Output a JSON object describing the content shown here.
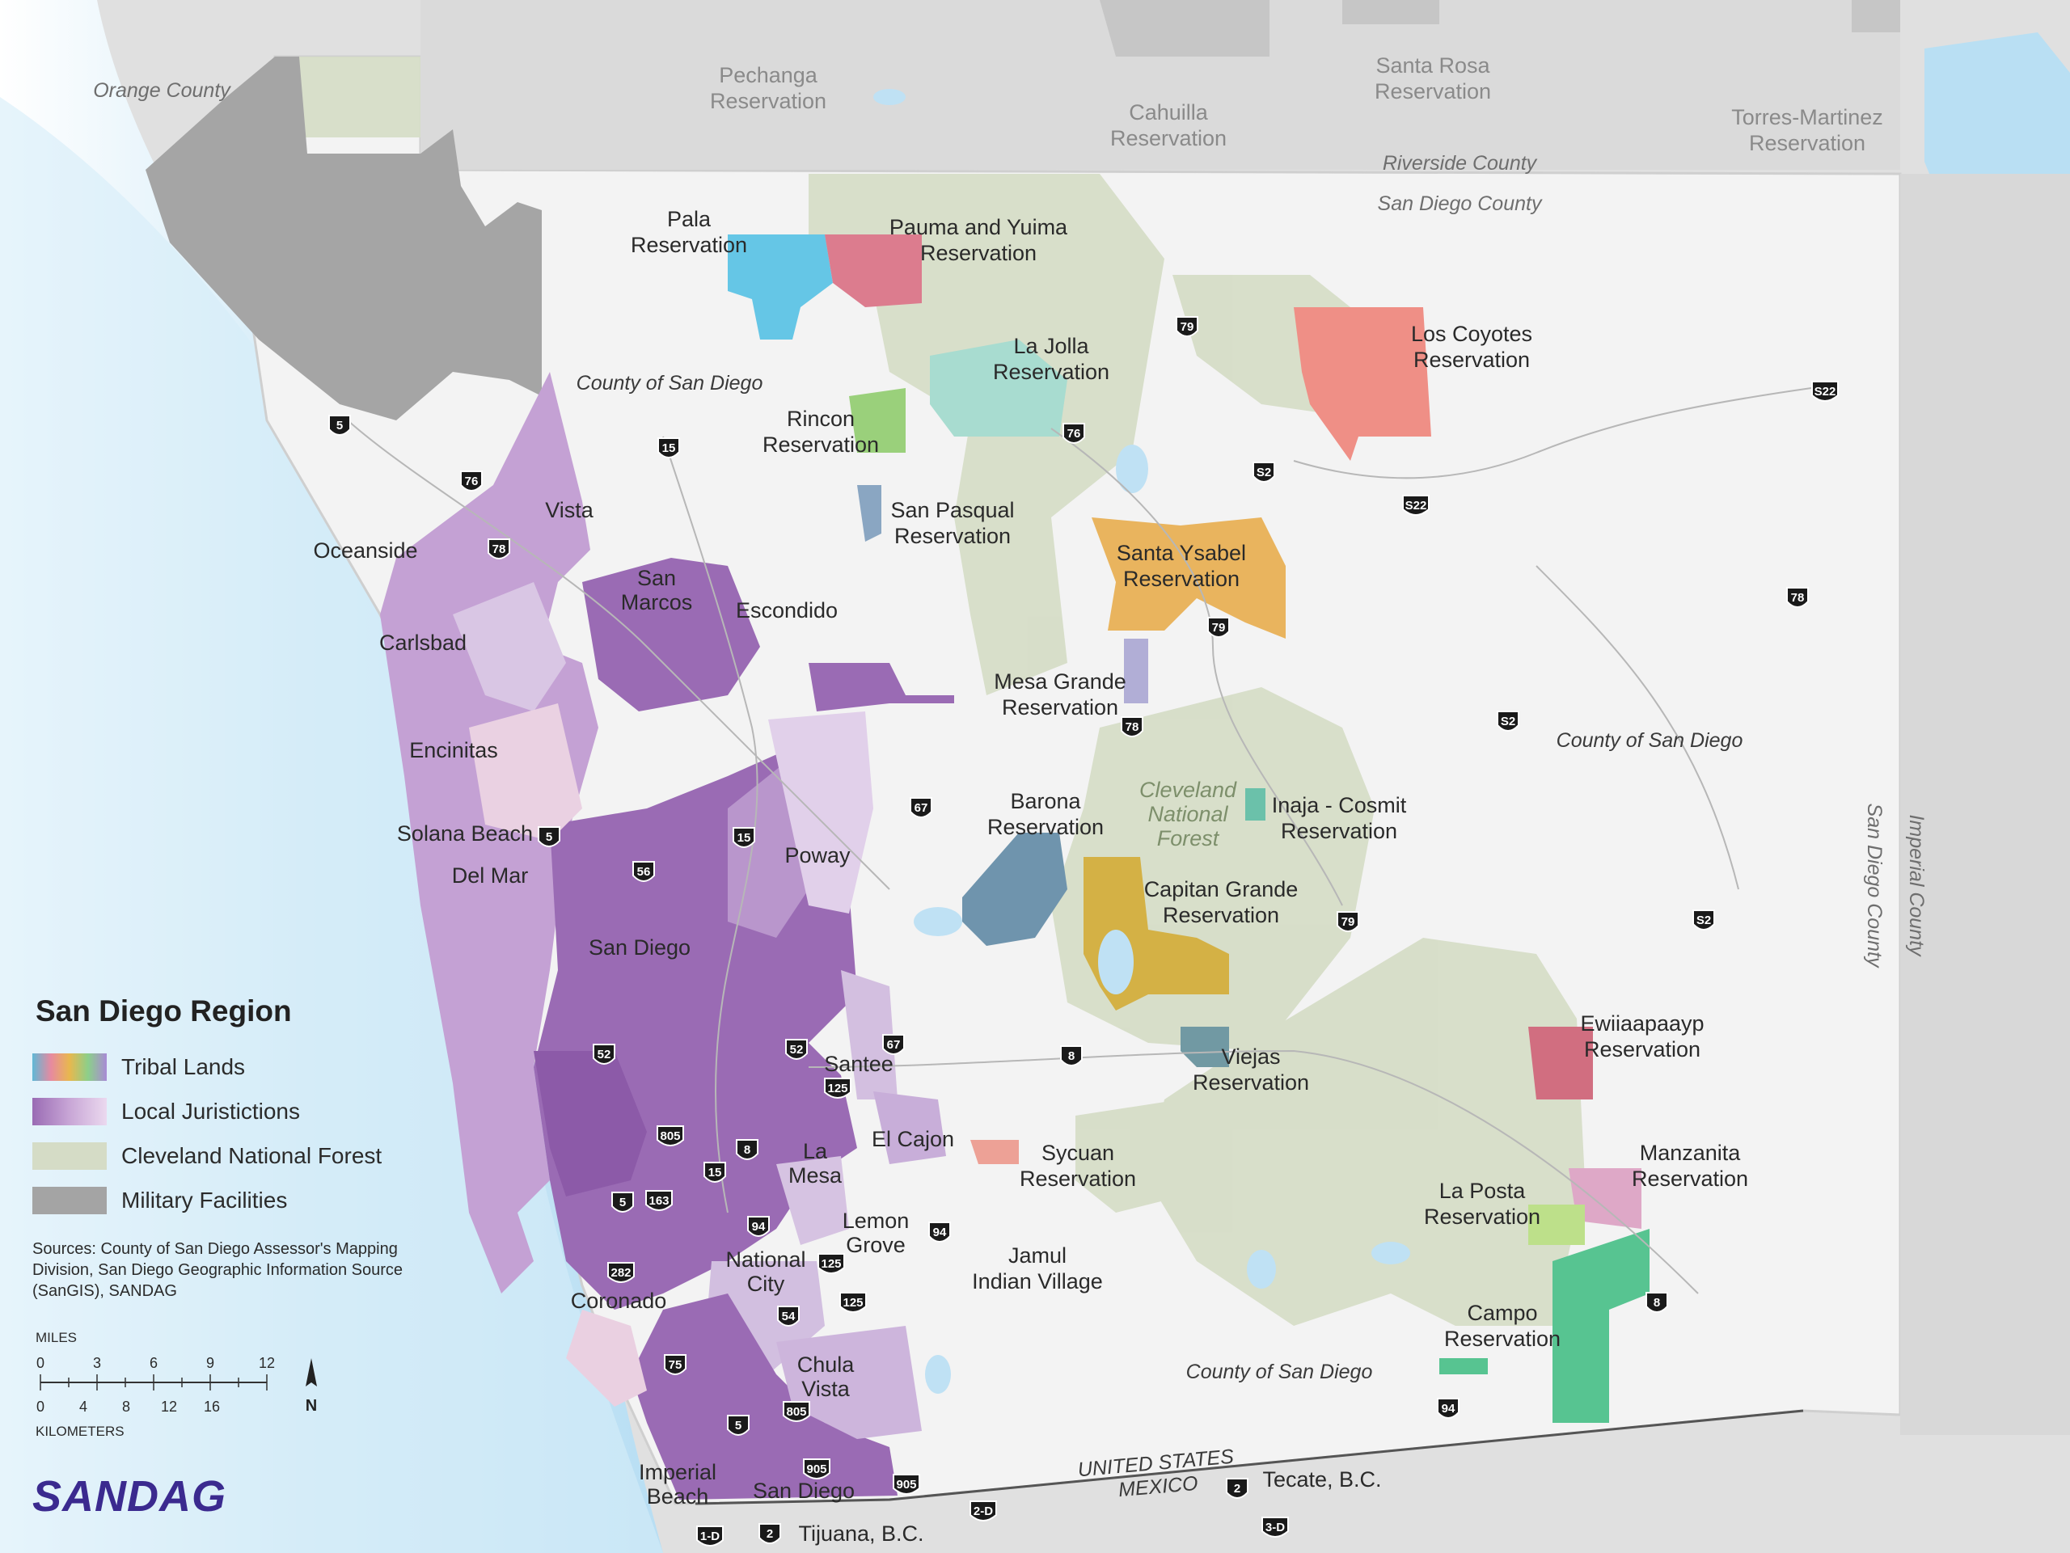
{
  "map": {
    "counties": {
      "orange": "Orange County",
      "riverside": "Riverside County",
      "san_diego_north": "San Diego County",
      "county_sd_1": "County of San Diego",
      "county_sd_2": "County of San Diego",
      "county_sd_3": "County of San Diego",
      "imperial": "Imperial County",
      "san_diego_vertical": "San Diego County"
    },
    "reservations": {
      "pechanga": "Pechanga\nReservation",
      "cahuilla": "Cahuilla\nReservation",
      "santa_rosa": "Santa Rosa\nReservation",
      "torres_martinez": "Torres-Martinez\nReservation",
      "pala": "Pala\nReservation",
      "pauma_yuima": "Pauma and Yuima\nReservation",
      "la_jolla": "La Jolla\nReservation",
      "los_coyotes": "Los Coyotes\nReservation",
      "rincon": "Rincon\nReservation",
      "san_pasqual": "San Pasqual\nReservation",
      "santa_ysabel": "Santa Ysabel\nReservation",
      "mesa_grande": "Mesa Grande\nReservation",
      "barona": "Barona\nReservation",
      "inaja_cosmit": "Inaja - Cosmit\nReservation",
      "capitan_grande": "Capitan Grande\nReservation",
      "viejas": "Viejas\nReservation",
      "ewiiaapaayp": "Ewiiaapaayp\nReservation",
      "sycuan": "Sycuan\nReservation",
      "jamul": "Jamul\nIndian Village",
      "manzanita": "Manzanita\nReservation",
      "la_posta": "La Posta\nReservation",
      "campo": "Campo\nReservation"
    },
    "cities": {
      "oceanside": "Oceanside",
      "vista": "Vista",
      "san_marcos": "San\nMarcos",
      "escondido": "Escondido",
      "carlsbad": "Carlsbad",
      "encinitas": "Encinitas",
      "solana_beach": "Solana Beach",
      "del_mar": "Del Mar",
      "poway": "Poway",
      "san_diego": "San Diego",
      "santee": "Santee",
      "el_cajon": "El Cajon",
      "la_mesa": "La\nMesa",
      "lemon_grove": "Lemon\nGrove",
      "national_city": "National\nCity",
      "coronado": "Coronado",
      "chula_vista": "Chula\nVista",
      "imperial_beach": "Imperial\nBeach",
      "san_diego_south": "San Diego",
      "tecate": "Tecate, B.C.",
      "tijuana": "Tijuana, B.C."
    },
    "forest_label": "Cleveland\nNational\nForest",
    "border": {
      "us": "UNITED STATES",
      "mexico": "MEXICO"
    },
    "highways": [
      "5",
      "76",
      "78",
      "15",
      "79",
      "76",
      "S2",
      "S22",
      "S22",
      "78",
      "79",
      "78",
      "S2",
      "67",
      "5",
      "15",
      "56",
      "79",
      "S2",
      "52",
      "52",
      "67",
      "125",
      "8",
      "805",
      "8",
      "15",
      "163",
      "5",
      "94",
      "94",
      "125",
      "282",
      "125",
      "54",
      "75",
      "805",
      "5",
      "905",
      "905",
      "8",
      "94",
      "1-D",
      "2",
      "2-D",
      "2",
      "3-D"
    ]
  },
  "legend": {
    "title": "San Diego Region",
    "items": [
      {
        "label": "Tribal Lands"
      },
      {
        "label": "Local Juristictions"
      },
      {
        "label": "Cleveland National Forest"
      },
      {
        "label": "Military Facilities"
      }
    ]
  },
  "sources": "Sources: County of San Diego Assessor's Mapping Division, San Diego Geographic Information Source (SanGIS), SANDAG",
  "scale": {
    "miles_label": "MILES",
    "miles_ticks": [
      "0",
      "3",
      "6",
      "9",
      "12"
    ],
    "km_ticks": [
      "0",
      "4",
      "8",
      "12",
      "16"
    ],
    "km_label": "KILOMETERS",
    "north": "N"
  },
  "logo": "SANDAG",
  "colors": {
    "ocean": "#cfe9f7",
    "land_outside": "#dedede",
    "county": "#f2f2f2",
    "forest": "#d5dcc6",
    "military": "#a4a4a4",
    "juris_dark": "#9a6bb4",
    "juris_light": "#d6c0e0",
    "juris_pink": "#ebcfdf"
  }
}
